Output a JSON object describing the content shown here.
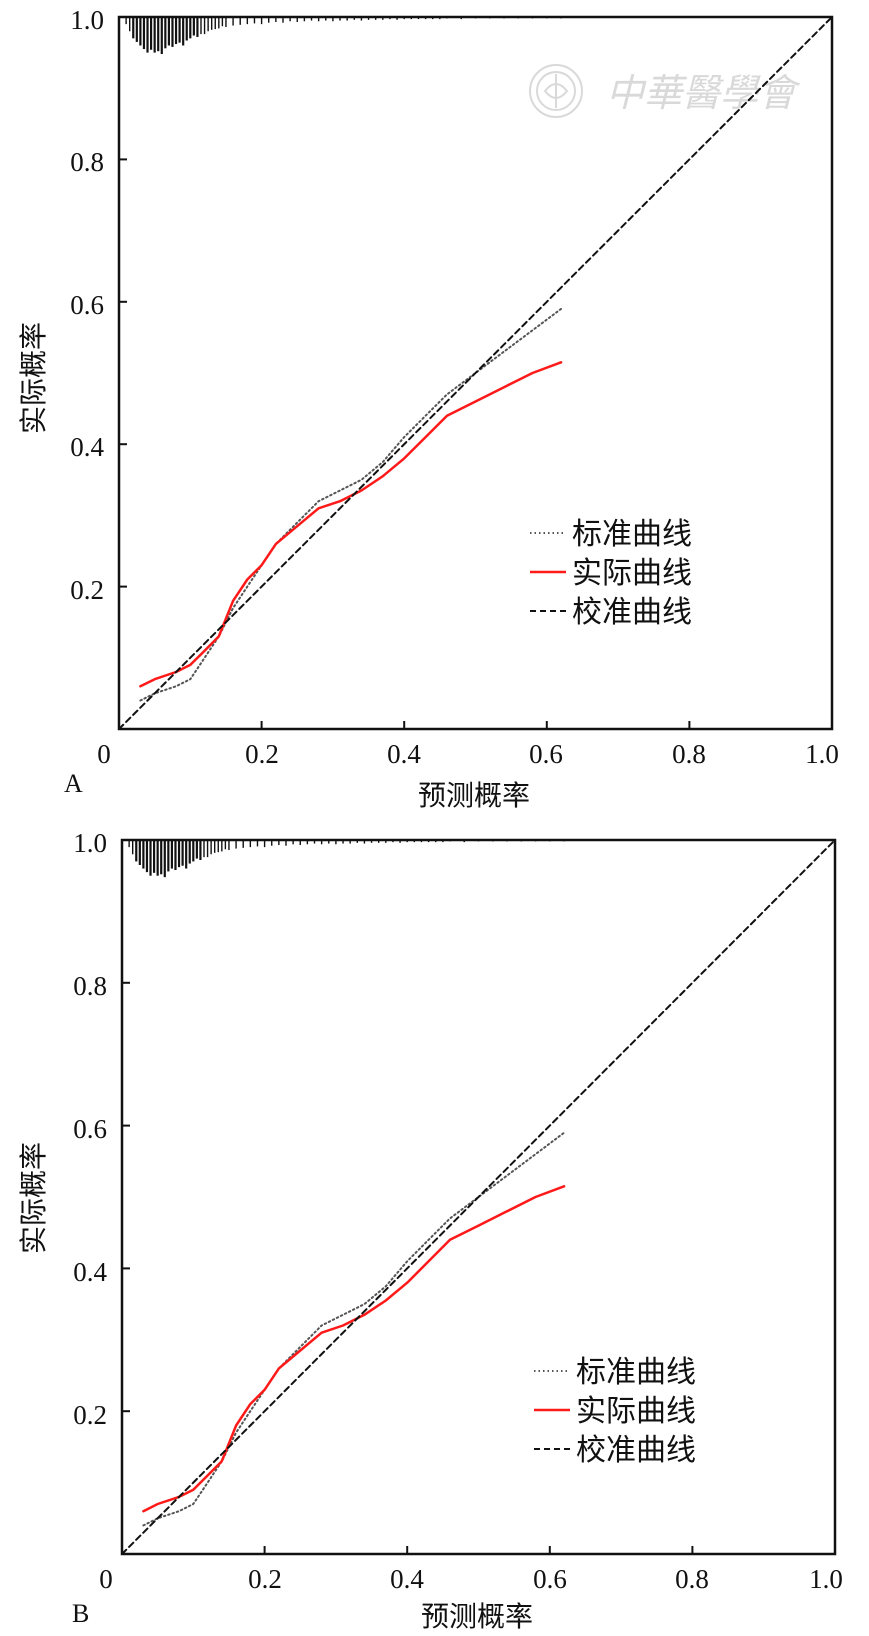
{
  "watermark": {
    "text": "中華醫學會"
  },
  "chart_data": [
    {
      "type": "line",
      "panel_label": "A",
      "xlabel": "预测概率",
      "ylabel": "实际概率",
      "xlim": [
        0,
        1
      ],
      "ylim": [
        0,
        1
      ],
      "x_ticks": [
        "0",
        "0.2",
        "0.4",
        "0.6",
        "0.8",
        "1.0"
      ],
      "y_ticks": [
        "0.2",
        "0.4",
        "0.6",
        "0.8",
        "1.0"
      ],
      "legend_position": "lower-right",
      "series": [
        {
          "name": "标准曲线",
          "style": "dotted",
          "color": "#555555",
          "x": [
            0.03,
            0.05,
            0.08,
            0.1,
            0.12,
            0.14,
            0.16,
            0.18,
            0.2,
            0.22,
            0.25,
            0.28,
            0.31,
            0.34,
            0.37,
            0.4,
            0.43,
            0.46,
            0.5,
            0.54,
            0.58,
            0.62
          ],
          "y": [
            0.04,
            0.05,
            0.06,
            0.07,
            0.1,
            0.13,
            0.17,
            0.2,
            0.23,
            0.26,
            0.29,
            0.32,
            0.335,
            0.35,
            0.375,
            0.41,
            0.44,
            0.47,
            0.5,
            0.53,
            0.56,
            0.59
          ]
        },
        {
          "name": "实际曲线",
          "style": "solid",
          "color": "#ff1a1a",
          "x": [
            0.03,
            0.05,
            0.08,
            0.1,
            0.12,
            0.14,
            0.16,
            0.18,
            0.2,
            0.22,
            0.25,
            0.28,
            0.31,
            0.34,
            0.37,
            0.4,
            0.43,
            0.46,
            0.5,
            0.54,
            0.58,
            0.62
          ],
          "y": [
            0.06,
            0.07,
            0.08,
            0.09,
            0.11,
            0.13,
            0.18,
            0.21,
            0.23,
            0.26,
            0.285,
            0.31,
            0.32,
            0.335,
            0.355,
            0.38,
            0.41,
            0.44,
            0.46,
            0.48,
            0.5,
            0.515
          ]
        },
        {
          "name": "校准曲线",
          "style": "dashed",
          "color": "#111111",
          "x": [
            0,
            1
          ],
          "y": [
            0,
            1
          ]
        }
      ],
      "rug": [
        {
          "x": 0.01,
          "len": 0.01
        },
        {
          "x": 0.015,
          "len": 0.02
        },
        {
          "x": 0.02,
          "len": 0.03
        },
        {
          "x": 0.025,
          "len": 0.035
        },
        {
          "x": 0.03,
          "len": 0.04
        },
        {
          "x": 0.035,
          "len": 0.045
        },
        {
          "x": 0.04,
          "len": 0.05
        },
        {
          "x": 0.045,
          "len": 0.046
        },
        {
          "x": 0.05,
          "len": 0.05
        },
        {
          "x": 0.055,
          "len": 0.048
        },
        {
          "x": 0.06,
          "len": 0.052
        },
        {
          "x": 0.065,
          "len": 0.044
        },
        {
          "x": 0.07,
          "len": 0.04
        },
        {
          "x": 0.075,
          "len": 0.042
        },
        {
          "x": 0.08,
          "len": 0.038
        },
        {
          "x": 0.085,
          "len": 0.036
        },
        {
          "x": 0.09,
          "len": 0.04
        },
        {
          "x": 0.095,
          "len": 0.033
        },
        {
          "x": 0.1,
          "len": 0.03
        },
        {
          "x": 0.105,
          "len": 0.026
        },
        {
          "x": 0.11,
          "len": 0.028
        },
        {
          "x": 0.115,
          "len": 0.024
        },
        {
          "x": 0.12,
          "len": 0.024
        },
        {
          "x": 0.125,
          "len": 0.02
        },
        {
          "x": 0.13,
          "len": 0.018
        },
        {
          "x": 0.135,
          "len": 0.017
        },
        {
          "x": 0.14,
          "len": 0.016
        },
        {
          "x": 0.145,
          "len": 0.013
        },
        {
          "x": 0.15,
          "len": 0.014
        },
        {
          "x": 0.16,
          "len": 0.012
        },
        {
          "x": 0.17,
          "len": 0.011
        },
        {
          "x": 0.18,
          "len": 0.01
        },
        {
          "x": 0.19,
          "len": 0.009
        },
        {
          "x": 0.2,
          "len": 0.01
        },
        {
          "x": 0.21,
          "len": 0.008
        },
        {
          "x": 0.22,
          "len": 0.007
        },
        {
          "x": 0.23,
          "len": 0.008
        },
        {
          "x": 0.24,
          "len": 0.006
        },
        {
          "x": 0.25,
          "len": 0.007
        },
        {
          "x": 0.26,
          "len": 0.006
        },
        {
          "x": 0.27,
          "len": 0.005
        },
        {
          "x": 0.28,
          "len": 0.006
        },
        {
          "x": 0.29,
          "len": 0.005
        },
        {
          "x": 0.3,
          "len": 0.006
        },
        {
          "x": 0.31,
          "len": 0.005
        },
        {
          "x": 0.32,
          "len": 0.005
        },
        {
          "x": 0.33,
          "len": 0.004
        },
        {
          "x": 0.34,
          "len": 0.005
        },
        {
          "x": 0.35,
          "len": 0.004
        },
        {
          "x": 0.36,
          "len": 0.004
        },
        {
          "x": 0.37,
          "len": 0.004
        },
        {
          "x": 0.38,
          "len": 0.003
        },
        {
          "x": 0.39,
          "len": 0.004
        },
        {
          "x": 0.4,
          "len": 0.003
        },
        {
          "x": 0.41,
          "len": 0.003
        },
        {
          "x": 0.42,
          "len": 0.003
        },
        {
          "x": 0.43,
          "len": 0.003
        },
        {
          "x": 0.44,
          "len": 0.003
        },
        {
          "x": 0.45,
          "len": 0.003
        },
        {
          "x": 0.46,
          "len": 0.002
        },
        {
          "x": 0.48,
          "len": 0.003
        },
        {
          "x": 0.5,
          "len": 0.002
        },
        {
          "x": 0.52,
          "len": 0.002
        },
        {
          "x": 0.54,
          "len": 0.002
        },
        {
          "x": 0.56,
          "len": 0.002
        },
        {
          "x": 0.58,
          "len": 0.002
        },
        {
          "x": 0.6,
          "len": 0.002
        },
        {
          "x": 0.62,
          "len": 0.002
        }
      ]
    },
    {
      "type": "line",
      "panel_label": "B",
      "xlabel": "预测概率",
      "ylabel": "实际概率",
      "xlim": [
        0,
        1
      ],
      "ylim": [
        0,
        1
      ],
      "x_ticks": [
        "0",
        "0.2",
        "0.4",
        "0.6",
        "0.8",
        "1.0"
      ],
      "y_ticks": [
        "0.2",
        "0.4",
        "0.6",
        "0.8",
        "1.0"
      ],
      "legend_position": "lower-right",
      "series": [
        {
          "name": "标准曲线",
          "style": "dotted",
          "color": "#555555",
          "x": [
            0.03,
            0.05,
            0.08,
            0.1,
            0.12,
            0.14,
            0.16,
            0.18,
            0.2,
            0.22,
            0.25,
            0.28,
            0.31,
            0.34,
            0.37,
            0.4,
            0.43,
            0.46,
            0.5,
            0.54,
            0.58,
            0.62
          ],
          "y": [
            0.04,
            0.05,
            0.06,
            0.07,
            0.1,
            0.13,
            0.17,
            0.2,
            0.23,
            0.26,
            0.29,
            0.32,
            0.335,
            0.35,
            0.375,
            0.41,
            0.44,
            0.47,
            0.5,
            0.53,
            0.56,
            0.59
          ]
        },
        {
          "name": "实际曲线",
          "style": "solid",
          "color": "#ff1a1a",
          "x": [
            0.03,
            0.05,
            0.08,
            0.1,
            0.12,
            0.14,
            0.16,
            0.18,
            0.2,
            0.22,
            0.25,
            0.28,
            0.31,
            0.34,
            0.37,
            0.4,
            0.43,
            0.46,
            0.5,
            0.54,
            0.58,
            0.62
          ],
          "y": [
            0.06,
            0.07,
            0.08,
            0.09,
            0.11,
            0.13,
            0.18,
            0.21,
            0.23,
            0.26,
            0.285,
            0.31,
            0.32,
            0.335,
            0.355,
            0.38,
            0.41,
            0.44,
            0.46,
            0.48,
            0.5,
            0.515
          ]
        },
        {
          "name": "校准曲线",
          "style": "dashed",
          "color": "#111111",
          "x": [
            0,
            1
          ],
          "y": [
            0,
            1
          ]
        }
      ],
      "rug": [
        {
          "x": 0.01,
          "len": 0.01
        },
        {
          "x": 0.015,
          "len": 0.02
        },
        {
          "x": 0.02,
          "len": 0.03
        },
        {
          "x": 0.025,
          "len": 0.035
        },
        {
          "x": 0.03,
          "len": 0.04
        },
        {
          "x": 0.035,
          "len": 0.045
        },
        {
          "x": 0.04,
          "len": 0.05
        },
        {
          "x": 0.045,
          "len": 0.046
        },
        {
          "x": 0.05,
          "len": 0.05
        },
        {
          "x": 0.055,
          "len": 0.048
        },
        {
          "x": 0.06,
          "len": 0.052
        },
        {
          "x": 0.065,
          "len": 0.044
        },
        {
          "x": 0.07,
          "len": 0.04
        },
        {
          "x": 0.075,
          "len": 0.042
        },
        {
          "x": 0.08,
          "len": 0.038
        },
        {
          "x": 0.085,
          "len": 0.036
        },
        {
          "x": 0.09,
          "len": 0.04
        },
        {
          "x": 0.095,
          "len": 0.033
        },
        {
          "x": 0.1,
          "len": 0.03
        },
        {
          "x": 0.105,
          "len": 0.026
        },
        {
          "x": 0.11,
          "len": 0.028
        },
        {
          "x": 0.115,
          "len": 0.024
        },
        {
          "x": 0.12,
          "len": 0.024
        },
        {
          "x": 0.125,
          "len": 0.02
        },
        {
          "x": 0.13,
          "len": 0.018
        },
        {
          "x": 0.135,
          "len": 0.017
        },
        {
          "x": 0.14,
          "len": 0.016
        },
        {
          "x": 0.145,
          "len": 0.013
        },
        {
          "x": 0.15,
          "len": 0.014
        },
        {
          "x": 0.16,
          "len": 0.012
        },
        {
          "x": 0.17,
          "len": 0.011
        },
        {
          "x": 0.18,
          "len": 0.01
        },
        {
          "x": 0.19,
          "len": 0.009
        },
        {
          "x": 0.2,
          "len": 0.01
        },
        {
          "x": 0.21,
          "len": 0.008
        },
        {
          "x": 0.22,
          "len": 0.007
        },
        {
          "x": 0.23,
          "len": 0.008
        },
        {
          "x": 0.24,
          "len": 0.006
        },
        {
          "x": 0.25,
          "len": 0.007
        },
        {
          "x": 0.26,
          "len": 0.006
        },
        {
          "x": 0.27,
          "len": 0.005
        },
        {
          "x": 0.28,
          "len": 0.006
        },
        {
          "x": 0.29,
          "len": 0.005
        },
        {
          "x": 0.3,
          "len": 0.006
        },
        {
          "x": 0.31,
          "len": 0.005
        },
        {
          "x": 0.32,
          "len": 0.005
        },
        {
          "x": 0.33,
          "len": 0.004
        },
        {
          "x": 0.34,
          "len": 0.005
        },
        {
          "x": 0.35,
          "len": 0.004
        },
        {
          "x": 0.36,
          "len": 0.004
        },
        {
          "x": 0.37,
          "len": 0.004
        },
        {
          "x": 0.38,
          "len": 0.003
        },
        {
          "x": 0.39,
          "len": 0.004
        },
        {
          "x": 0.4,
          "len": 0.003
        },
        {
          "x": 0.41,
          "len": 0.003
        },
        {
          "x": 0.42,
          "len": 0.003
        },
        {
          "x": 0.43,
          "len": 0.003
        },
        {
          "x": 0.44,
          "len": 0.003
        },
        {
          "x": 0.45,
          "len": 0.003
        },
        {
          "x": 0.46,
          "len": 0.002
        },
        {
          "x": 0.48,
          "len": 0.003
        },
        {
          "x": 0.5,
          "len": 0.002
        },
        {
          "x": 0.52,
          "len": 0.002
        },
        {
          "x": 0.54,
          "len": 0.002
        },
        {
          "x": 0.56,
          "len": 0.002
        },
        {
          "x": 0.58,
          "len": 0.002
        },
        {
          "x": 0.6,
          "len": 0.002
        },
        {
          "x": 0.62,
          "len": 0.002
        }
      ]
    }
  ]
}
